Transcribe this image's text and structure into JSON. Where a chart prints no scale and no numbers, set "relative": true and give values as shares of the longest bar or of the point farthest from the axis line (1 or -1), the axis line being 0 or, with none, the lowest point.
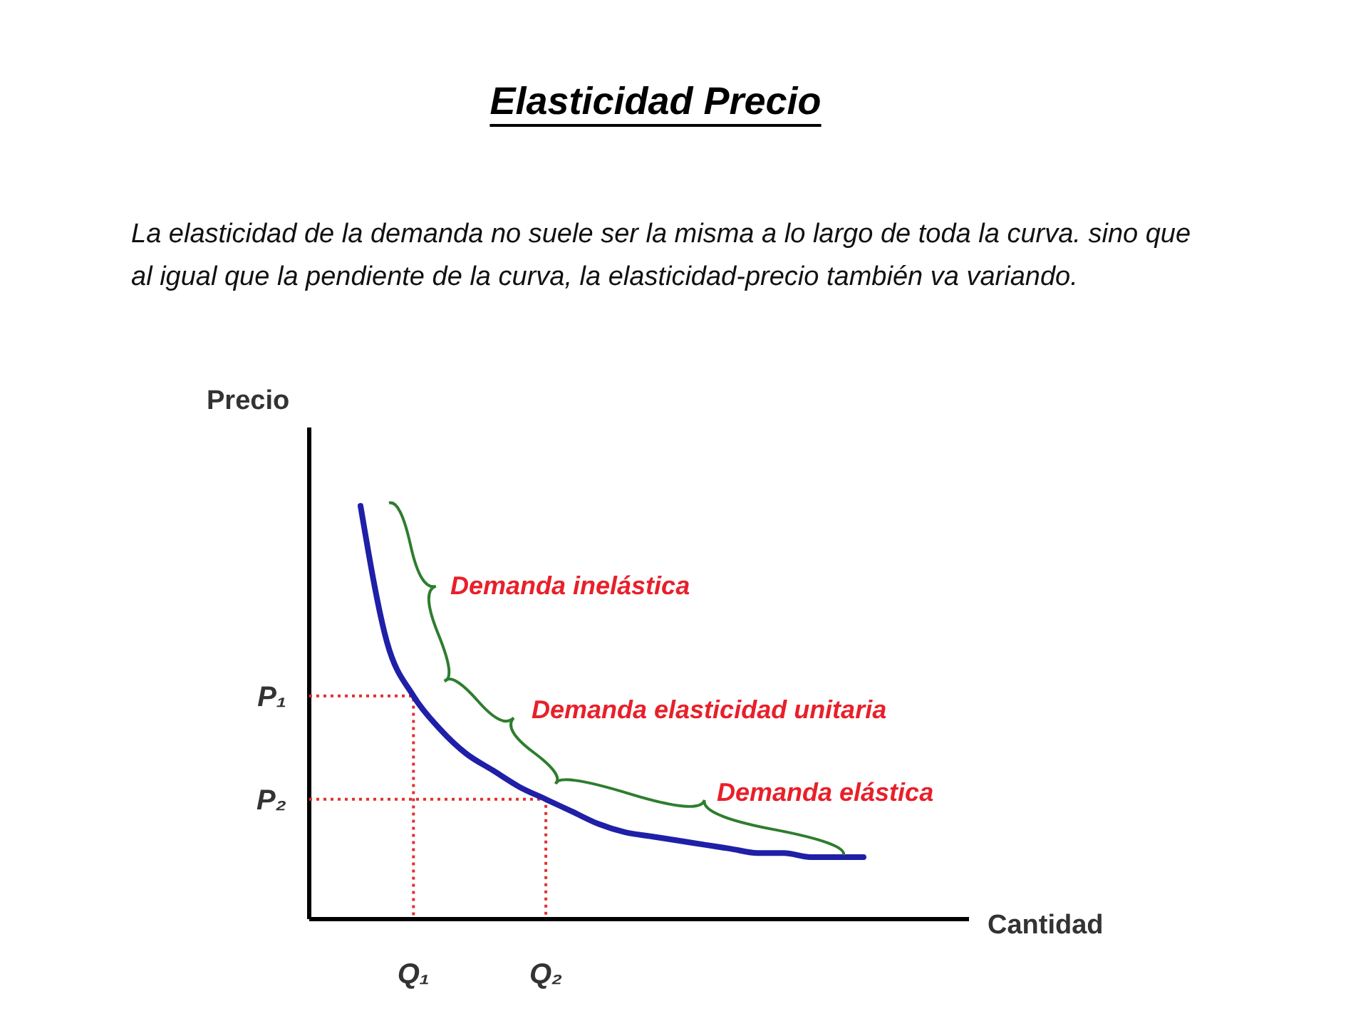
{
  "chart_data": {
    "type": "line",
    "title": "Elasticidad Precio",
    "subtitle": "La elasticidad de la demanda no suele ser la misma a lo largo de toda la curva. sino que al igual que la pendiente de la curva, la elasticidad-precio también va variando.",
    "xlabel": "Cantidad",
    "ylabel": "Precio",
    "relative": true,
    "categories": [
      null,
      null,
      "Q₁",
      null,
      null,
      null,
      null,
      "Q₂",
      null,
      null,
      null,
      null,
      null,
      null,
      null,
      null,
      null,
      null,
      null,
      null
    ],
    "series": [
      {
        "color": "#1f1fa8",
        "values": [
          1,
          0.67,
          0.54,
          0.46,
          0.4,
          0.36,
          0.32,
          0.29,
          0.26,
          0.23,
          0.21,
          0.2,
          0.19,
          0.18,
          0.17,
          0.16,
          0.16,
          0.15,
          0.15,
          0.15
        ]
      }
    ],
    "ref_lines": [
      {
        "axis": "y",
        "value": 0.54,
        "label": "P₁",
        "color": "#e03030",
        "line_style": "dotted"
      },
      {
        "axis": "y",
        "value": 0.29,
        "label": "P₂",
        "color": "#e03030",
        "line_style": "dotted"
      }
    ],
    "annotations": [
      "Demanda inelástica",
      "Demanda elasticidad unitaria",
      "Demanda elástica"
    ],
    "line_style": "solid"
  }
}
